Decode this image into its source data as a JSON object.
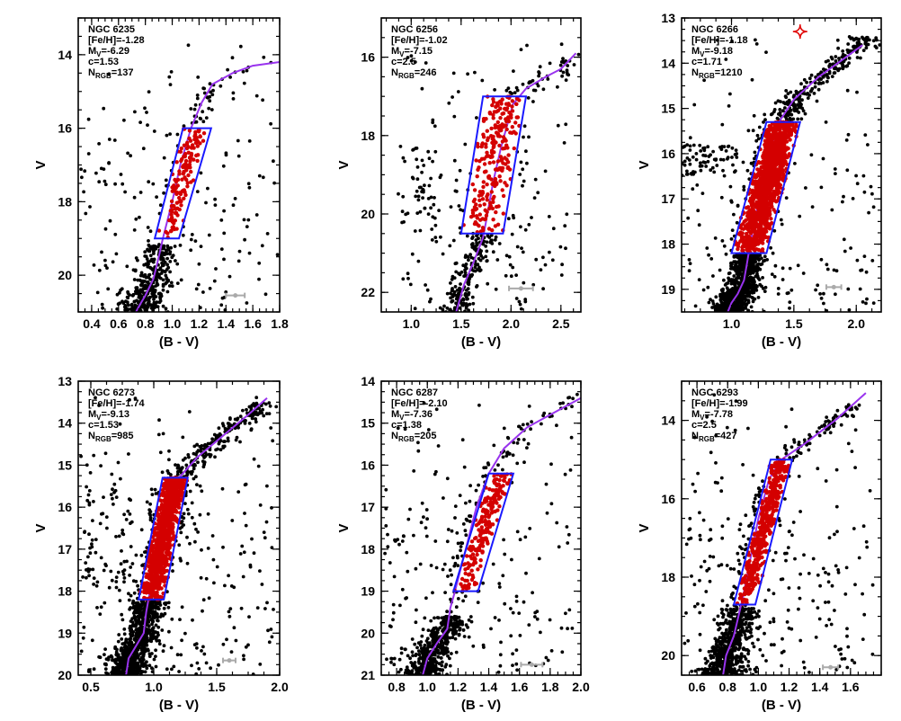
{
  "chart_data": [
    {
      "type": "scatter",
      "name": "NGC 6235",
      "xlabel": "(B - V)",
      "ylabel": "V",
      "xlim": [
        0.3,
        1.8
      ],
      "ylim": [
        21.0,
        13.0
      ],
      "xticks": [
        0.4,
        0.6,
        0.8,
        1.0,
        1.2,
        1.4,
        1.6,
        1.8
      ],
      "yticks": [
        14,
        16,
        18,
        20
      ],
      "info": {
        "name": "NGC 6235",
        "feh_label": "[Fe/H]=",
        "feh": "-1.28",
        "mv_label": "M",
        "mv_sub": "V",
        "mv": "=-6.29",
        "c_label": "c=",
        "c": "1.53",
        "n_label": "N",
        "n_sub": "RGB",
        "n": "=137"
      },
      "n_rgb": 137,
      "rgb_box": {
        "top_v": 16.0,
        "bottom_v": 19.0,
        "left_top": 1.08,
        "right_top": 1.29,
        "left_bottom": 0.87,
        "right_bottom": 1.05
      },
      "isochrone": [
        [
          0.73,
          21.0
        ],
        [
          0.76,
          20.8
        ],
        [
          0.8,
          20.55
        ],
        [
          0.86,
          20.1
        ],
        [
          0.88,
          19.8
        ],
        [
          0.9,
          19.5
        ],
        [
          0.93,
          19.0
        ],
        [
          1.0,
          18.0
        ],
        [
          1.06,
          17.0
        ],
        [
          1.14,
          16.0
        ],
        [
          1.22,
          15.3
        ],
        [
          1.3,
          14.8
        ],
        [
          1.45,
          14.5
        ],
        [
          1.6,
          14.3
        ],
        [
          1.8,
          14.2
        ]
      ],
      "giant_branch": {
        "tip_v": 14.0,
        "spread": 0.04
      },
      "blue_hb": {
        "count": 8,
        "bv": [
          0.3,
          0.55
        ],
        "v": [
          16.8,
          17.8
        ]
      },
      "core": {
        "count": 520,
        "v_top": 19.2
      },
      "field": {
        "count": 170,
        "bv": [
          0.35,
          1.8
        ]
      },
      "errorbar": {
        "bv": 1.47,
        "v": 20.55,
        "half": 0.07
      }
    },
    {
      "type": "scatter",
      "name": "NGC 6256",
      "xlabel": "(B - V)",
      "ylabel": "V",
      "xlim": [
        0.7,
        2.7
      ],
      "ylim": [
        22.5,
        15.0
      ],
      "xticks": [
        1.0,
        1.5,
        2.0,
        2.5
      ],
      "yticks": [
        16,
        18,
        20,
        22
      ],
      "info": {
        "name": "NGC 6256",
        "feh_label": "[Fe/H]=",
        "feh": "-1.02",
        "mv_label": "M",
        "mv_sub": "V",
        "mv": "=-7.15",
        "c_label": "c=",
        "c": "2.5",
        "n_label": "N",
        "n_sub": "RGB",
        "n": "=246"
      },
      "n_rgb": 246,
      "rgb_box": {
        "top_v": 17.0,
        "bottom_v": 20.5,
        "left_top": 1.72,
        "right_top": 2.15,
        "left_bottom": 1.5,
        "right_bottom": 1.92
      },
      "isochrone": [
        [
          1.45,
          22.5
        ],
        [
          1.53,
          21.8
        ],
        [
          1.63,
          21.2
        ],
        [
          1.72,
          20.6
        ],
        [
          1.75,
          20.2
        ],
        [
          1.82,
          19.2
        ],
        [
          1.9,
          18.3
        ],
        [
          2.02,
          17.2
        ],
        [
          2.15,
          16.8
        ],
        [
          2.35,
          16.5
        ],
        [
          2.5,
          16.3
        ],
        [
          2.65,
          15.9
        ]
      ],
      "giant_branch": {
        "tip_v": 15.8,
        "spread": 0.06
      },
      "blue_hb": {
        "count": 45,
        "bv": [
          0.9,
          1.3
        ],
        "v": [
          18.3,
          20.6
        ]
      },
      "core": {
        "count": 260,
        "v_top": 20.2
      },
      "field": {
        "count": 160,
        "bv": [
          0.85,
          2.6
        ]
      },
      "errorbar": {
        "bv": 2.1,
        "v": 21.9,
        "half": 0.12
      }
    },
    {
      "type": "scatter",
      "name": "NGC 6266",
      "xlabel": "(B - V)",
      "ylabel": "V",
      "xlim": [
        0.6,
        2.2
      ],
      "ylim": [
        19.5,
        13.0
      ],
      "xticks": [
        1.0,
        1.5,
        2.0
      ],
      "yticks": [
        13,
        14,
        15,
        16,
        17,
        18,
        19
      ],
      "info": {
        "name": "NGC 6266",
        "feh_label": "[Fe/H]=",
        "feh": "-1.18",
        "mv_label": "M",
        "mv_sub": "V",
        "mv": "=-9.18",
        "c_label": "c=",
        "c": "1.71",
        "n_label": "N",
        "n_sub": "RGB",
        "n": "=1210"
      },
      "n_rgb": 1210,
      "rgb_box": {
        "top_v": 15.3,
        "bottom_v": 18.2,
        "left_top": 1.28,
        "right_top": 1.55,
        "left_bottom": 1.0,
        "right_bottom": 1.28
      },
      "isochrone": [
        [
          0.97,
          19.5
        ],
        [
          1.0,
          19.3
        ],
        [
          1.05,
          19.1
        ],
        [
          1.1,
          18.8
        ],
        [
          1.12,
          18.5
        ],
        [
          1.15,
          18.0
        ],
        [
          1.22,
          17.0
        ],
        [
          1.3,
          16.0
        ],
        [
          1.38,
          15.3
        ],
        [
          1.5,
          14.8
        ],
        [
          1.7,
          14.3
        ],
        [
          1.9,
          13.9
        ],
        [
          2.05,
          13.6
        ]
      ],
      "giant_branch": {
        "tip_v": 13.4,
        "spread": 0.05
      },
      "blue_hb": {
        "count": 70,
        "bv": [
          0.6,
          1.05
        ],
        "v": [
          15.8,
          16.5
        ]
      },
      "core": {
        "count": 1300,
        "v_top": 18.1
      },
      "field": {
        "count": 150,
        "bv": [
          0.65,
          2.15
        ]
      },
      "errorbar": {
        "bv": 1.82,
        "v": 18.95,
        "half": 0.06
      },
      "marker": {
        "bv": 1.55,
        "v": 13.3
      }
    },
    {
      "type": "scatter",
      "name": "NGC 6273",
      "xlabel": "(B - V)",
      "ylabel": "V",
      "xlim": [
        0.4,
        2.0
      ],
      "ylim": [
        20.0,
        13.0
      ],
      "xticks": [
        0.5,
        1.0,
        1.5,
        2.0
      ],
      "yticks": [
        13,
        14,
        15,
        16,
        17,
        18,
        19,
        20
      ],
      "info": {
        "name": "NGC 6273",
        "feh_label": "[Fe/H]=",
        "feh": "-1.74",
        "mv_label": "M",
        "mv_sub": "V",
        "mv": "=-9.13",
        "c_label": "c=",
        "c": "1.53",
        "n_label": "N",
        "n_sub": "RGB",
        "n": "=985"
      },
      "n_rgb": 985,
      "rgb_box": {
        "top_v": 15.3,
        "bottom_v": 18.2,
        "left_top": 1.07,
        "right_top": 1.27,
        "left_bottom": 0.88,
        "right_bottom": 1.08
      },
      "isochrone": [
        [
          0.78,
          20.0
        ],
        [
          0.8,
          19.6
        ],
        [
          0.86,
          19.3
        ],
        [
          0.92,
          19.0
        ],
        [
          0.94,
          18.5
        ],
        [
          0.97,
          18.0
        ],
        [
          1.05,
          17.0
        ],
        [
          1.12,
          16.0
        ],
        [
          1.2,
          15.3
        ],
        [
          1.35,
          14.8
        ],
        [
          1.55,
          14.3
        ],
        [
          1.75,
          13.8
        ],
        [
          1.9,
          13.4
        ]
      ],
      "giant_branch": {
        "tip_v": 13.5,
        "spread": 0.05
      },
      "blue_hb": {
        "count": 60,
        "bv": [
          0.45,
          0.85
        ],
        "v": [
          15.5,
          18.0
        ]
      },
      "core": {
        "count": 1100,
        "v_top": 18.2
      },
      "field": {
        "count": 220,
        "bv": [
          0.42,
          1.95
        ]
      },
      "errorbar": {
        "bv": 1.6,
        "v": 19.65,
        "half": 0.05
      }
    },
    {
      "type": "scatter",
      "name": "NGC 6287",
      "xlabel": "(B - V)",
      "ylabel": "V",
      "xlim": [
        0.7,
        2.0
      ],
      "ylim": [
        21.0,
        14.0
      ],
      "xticks": [
        0.8,
        1.0,
        1.2,
        1.4,
        1.6,
        1.8,
        2.0
      ],
      "yticks": [
        14,
        15,
        16,
        17,
        18,
        19,
        20,
        21
      ],
      "info": {
        "name": "NGC 6287",
        "feh_label": "[Fe/H]=",
        "feh": "-2.10",
        "mv_label": "M",
        "mv_sub": "V",
        "mv": "=-7.36",
        "c_label": "c=",
        "c": "1.38",
        "n_label": "N",
        "n_sub": "RGB",
        "n": "=205"
      },
      "n_rgb": 205,
      "rgb_box": {
        "top_v": 16.2,
        "bottom_v": 19.0,
        "left_top": 1.4,
        "right_top": 1.56,
        "left_bottom": 1.17,
        "right_bottom": 1.33
      },
      "isochrone": [
        [
          0.97,
          21.0
        ],
        [
          1.0,
          20.6
        ],
        [
          1.07,
          20.2
        ],
        [
          1.13,
          19.9
        ],
        [
          1.15,
          19.4
        ],
        [
          1.18,
          19.0
        ],
        [
          1.25,
          18.0
        ],
        [
          1.32,
          17.0
        ],
        [
          1.4,
          16.2
        ],
        [
          1.5,
          15.6
        ],
        [
          1.65,
          15.1
        ],
        [
          1.8,
          14.8
        ],
        [
          2.0,
          14.4
        ]
      ],
      "giant_branch": {
        "tip_v": 14.3,
        "spread": 0.05
      },
      "blue_hb": {
        "count": 20,
        "bv": [
          0.72,
          1.0
        ],
        "v": [
          17.0,
          18.5
        ]
      },
      "core": {
        "count": 700,
        "v_top": 19.6
      },
      "field": {
        "count": 170,
        "bv": [
          0.72,
          1.95
        ]
      },
      "errorbar": {
        "bv": 1.68,
        "v": 20.75,
        "half": 0.07
      }
    },
    {
      "type": "scatter",
      "name": "NGC 6293",
      "xlabel": "(B - V)",
      "ylabel": "V",
      "xlim": [
        0.5,
        1.8
      ],
      "ylim": [
        20.5,
        13.0
      ],
      "xticks": [
        0.6,
        0.8,
        1.0,
        1.2,
        1.4,
        1.6
      ],
      "yticks": [
        14,
        16,
        18,
        20
      ],
      "info": {
        "name": "NGC 6293",
        "feh_label": "[Fe/H]=",
        "feh": "-1.99",
        "mv_label": "M",
        "mv_sub": "V",
        "mv": "=-7.78",
        "c_label": "c=",
        "c": "2.5",
        "n_label": "N",
        "n_sub": "RGB",
        "n": "=427"
      },
      "n_rgb": 427,
      "rgb_box": {
        "top_v": 15.0,
        "bottom_v": 18.7,
        "left_top": 1.08,
        "right_top": 1.22,
        "left_bottom": 0.84,
        "right_bottom": 0.98
      },
      "isochrone": [
        [
          0.77,
          20.5
        ],
        [
          0.79,
          20.0
        ],
        [
          0.84,
          19.5
        ],
        [
          0.87,
          19.0
        ],
        [
          0.9,
          18.5
        ],
        [
          0.95,
          17.5
        ],
        [
          1.0,
          16.5
        ],
        [
          1.07,
          15.5
        ],
        [
          1.15,
          15.0
        ],
        [
          1.3,
          14.6
        ],
        [
          1.5,
          14.0
        ],
        [
          1.7,
          13.3
        ]
      ],
      "giant_branch": {
        "tip_v": 13.6,
        "spread": 0.04
      },
      "blue_hb": {
        "count": 30,
        "bv": [
          0.52,
          0.8
        ],
        "v": [
          16.5,
          19.0
        ]
      },
      "core": {
        "count": 800,
        "v_top": 18.8
      },
      "field": {
        "count": 190,
        "bv": [
          0.52,
          1.75
        ]
      },
      "errorbar": {
        "bv": 1.47,
        "v": 20.3,
        "half": 0.05
      }
    }
  ]
}
